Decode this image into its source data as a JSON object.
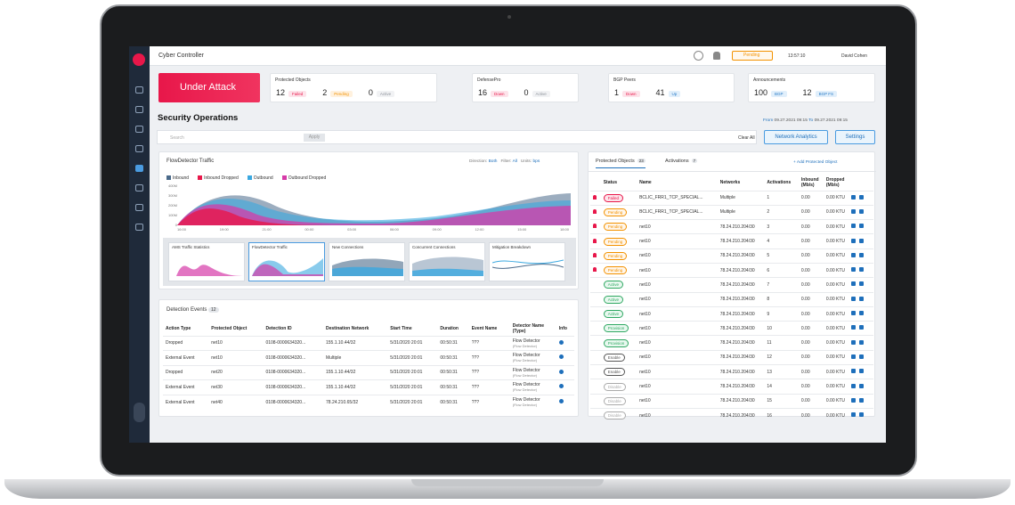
{
  "header": {
    "title": "Cyber Controller",
    "pending": "Pending",
    "time": "13:57:10",
    "user": "David Cohen"
  },
  "alert": "Under Attack",
  "summary": [
    {
      "title": "Protected Objects",
      "items": [
        {
          "value": 12,
          "status": "Failed"
        },
        {
          "value": 2,
          "status": "Pending"
        },
        {
          "value": 0,
          "status": "Active"
        }
      ]
    },
    {
      "title": "DefensePro",
      "items": [
        {
          "value": 16,
          "status": "Down"
        },
        {
          "value": 0,
          "status": "Active"
        }
      ]
    },
    {
      "title": "BGP Peers",
      "items": [
        {
          "value": 1,
          "status": "Down"
        },
        {
          "value": 41,
          "status": "Up"
        }
      ]
    },
    {
      "title": "Announcements",
      "items": [
        {
          "value": 100,
          "status": "BGP"
        },
        {
          "value": 12,
          "status": "BGP FS"
        }
      ]
    }
  ],
  "section_title": "Security Operations",
  "date_range": {
    "from_label": "From",
    "from": "09.27.2021 09:15",
    "to_label": "To",
    "to": "09.27.2021 09:15"
  },
  "search": {
    "placeholder": "Search",
    "apply": "Apply",
    "clear": "Clear All"
  },
  "buttons": [
    "Network Analytics",
    "Settings"
  ],
  "traffic": {
    "title": "FlowDetector Traffic",
    "direction_label": "Direction:",
    "direction": "Both",
    "filter_label": "Filter:",
    "filter": "All",
    "units_label": "Units:",
    "units": "bps",
    "legend": [
      "Inbound",
      "Inbound Dropped",
      "Outbound",
      "Outbound Dropped"
    ],
    "yticks": [
      "400M",
      "300M",
      "200M",
      "100M",
      "0"
    ],
    "xticks": [
      "16:00",
      "19:00",
      "21:00",
      "00:00",
      "03:00",
      "06:00",
      "09:00",
      "12:00",
      "15:00",
      "18:00"
    ],
    "thumbnails": [
      "AMS Traffic Statistics",
      "FlowDetector Traffic",
      "New Connections",
      "Concurrent Connections",
      "Mitigation Breakdown"
    ]
  },
  "events": {
    "title": "Detection Events",
    "count": 12,
    "columns": [
      "Action Type",
      "Protected Object",
      "Detection ID",
      "Destination Network",
      "Start Time",
      "Duration",
      "Event Name",
      "Detector Name (Type)",
      "Info"
    ],
    "rows": [
      [
        "Dropped",
        "net10",
        "0108-00006343​20...",
        "155.1.10.44/32",
        "5/31/2020 20:01",
        "00:50:31",
        "???",
        [
          "Flow Detector",
          "(Flow Detector)"
        ]
      ],
      [
        "External Event",
        "net10",
        "0108-00006343​20...",
        "Multiple",
        "5/31/2020 20:01",
        "00:50:31",
        "???",
        [
          "Flow Detector",
          "(Flow Detector)"
        ]
      ],
      [
        "Dropped",
        "net20",
        "0108-00006343​20...",
        "155.1.10.44/32",
        "5/31/2020 20:01",
        "00:50:31",
        "???",
        [
          "Flow Detector",
          "(Flow Detector)"
        ]
      ],
      [
        "External Event",
        "net30",
        "0108-00006343​20...",
        "155.1.10.44/32",
        "5/31/2020 20:01",
        "00:50:31",
        "???",
        [
          "Flow Detector",
          "(Flow Detector)"
        ]
      ],
      [
        "External Event",
        "net40",
        "0108-00006343​20...",
        "78.24.210.65/32",
        "5/31/2020 20:01",
        "00:50:31",
        "???",
        [
          "Flow Detector",
          "(Flow Detector)"
        ]
      ]
    ]
  },
  "objects": {
    "tabs": [
      {
        "label": "Protected Objects",
        "count": 23
      },
      {
        "label": "Activations",
        "count": 7
      }
    ],
    "add": "Add Protected Object",
    "columns": [
      "Status",
      "Name",
      "Networks",
      "Activations",
      "Inbound (Mb/s)",
      "Dropped (Mb/s)"
    ],
    "rows": [
      [
        "Failed",
        "BCLIC_FRR1_TCP_SPECIAL...",
        "Multiple",
        1,
        "0.00",
        "0.00 KTU"
      ],
      [
        "Pending",
        "BCLIC_FRR1_TCP_SPECIAL...",
        "Multiple",
        2,
        "0.00",
        "0.00 KTU"
      ],
      [
        "Pending",
        "net10",
        "78.24.210.204/30",
        3,
        "0.00",
        "0.00 KTU"
      ],
      [
        "Pending",
        "net10",
        "78.24.210.204/30",
        4,
        "0.00",
        "0.00 KTU"
      ],
      [
        "Pending",
        "net10",
        "78.24.210.204/30",
        5,
        "0.00",
        "0.00 KTU"
      ],
      [
        "Pending",
        "net10",
        "78.24.210.204/30",
        6,
        "0.00",
        "0.00 KTU"
      ],
      [
        "Active",
        "net10",
        "78.24.210.204/30",
        7,
        "0.00",
        "0.00 KTU"
      ],
      [
        "Active",
        "net10",
        "78.24.210.204/30",
        8,
        "0.00",
        "0.00 KTU"
      ],
      [
        "Active",
        "net10",
        "78.24.210.204/30",
        9,
        "0.00",
        "0.00 KTU"
      ],
      [
        "Provision",
        "net10",
        "78.24.210.204/30",
        10,
        "0.00",
        "0.00 KTU"
      ],
      [
        "Provision",
        "net10",
        "78.24.210.204/30",
        11,
        "0.00",
        "0.00 KTU"
      ],
      [
        "Enable",
        "net10",
        "78.24.210.204/30",
        12,
        "0.00",
        "0.00 KTU"
      ],
      [
        "Enable",
        "net10",
        "78.24.210.204/30",
        13,
        "0.00",
        "0.00 KTU"
      ],
      [
        "Disable",
        "net10",
        "78.24.210.204/30",
        14,
        "0.00",
        "0.00 KTU"
      ],
      [
        "Disable",
        "net10",
        "78.24.210.204/30",
        15,
        "0.00",
        "0.00 KTU"
      ],
      [
        "Disable",
        "net10",
        "78.24.210.204/30",
        16,
        "0.00",
        "0.00 KTU"
      ]
    ]
  }
}
